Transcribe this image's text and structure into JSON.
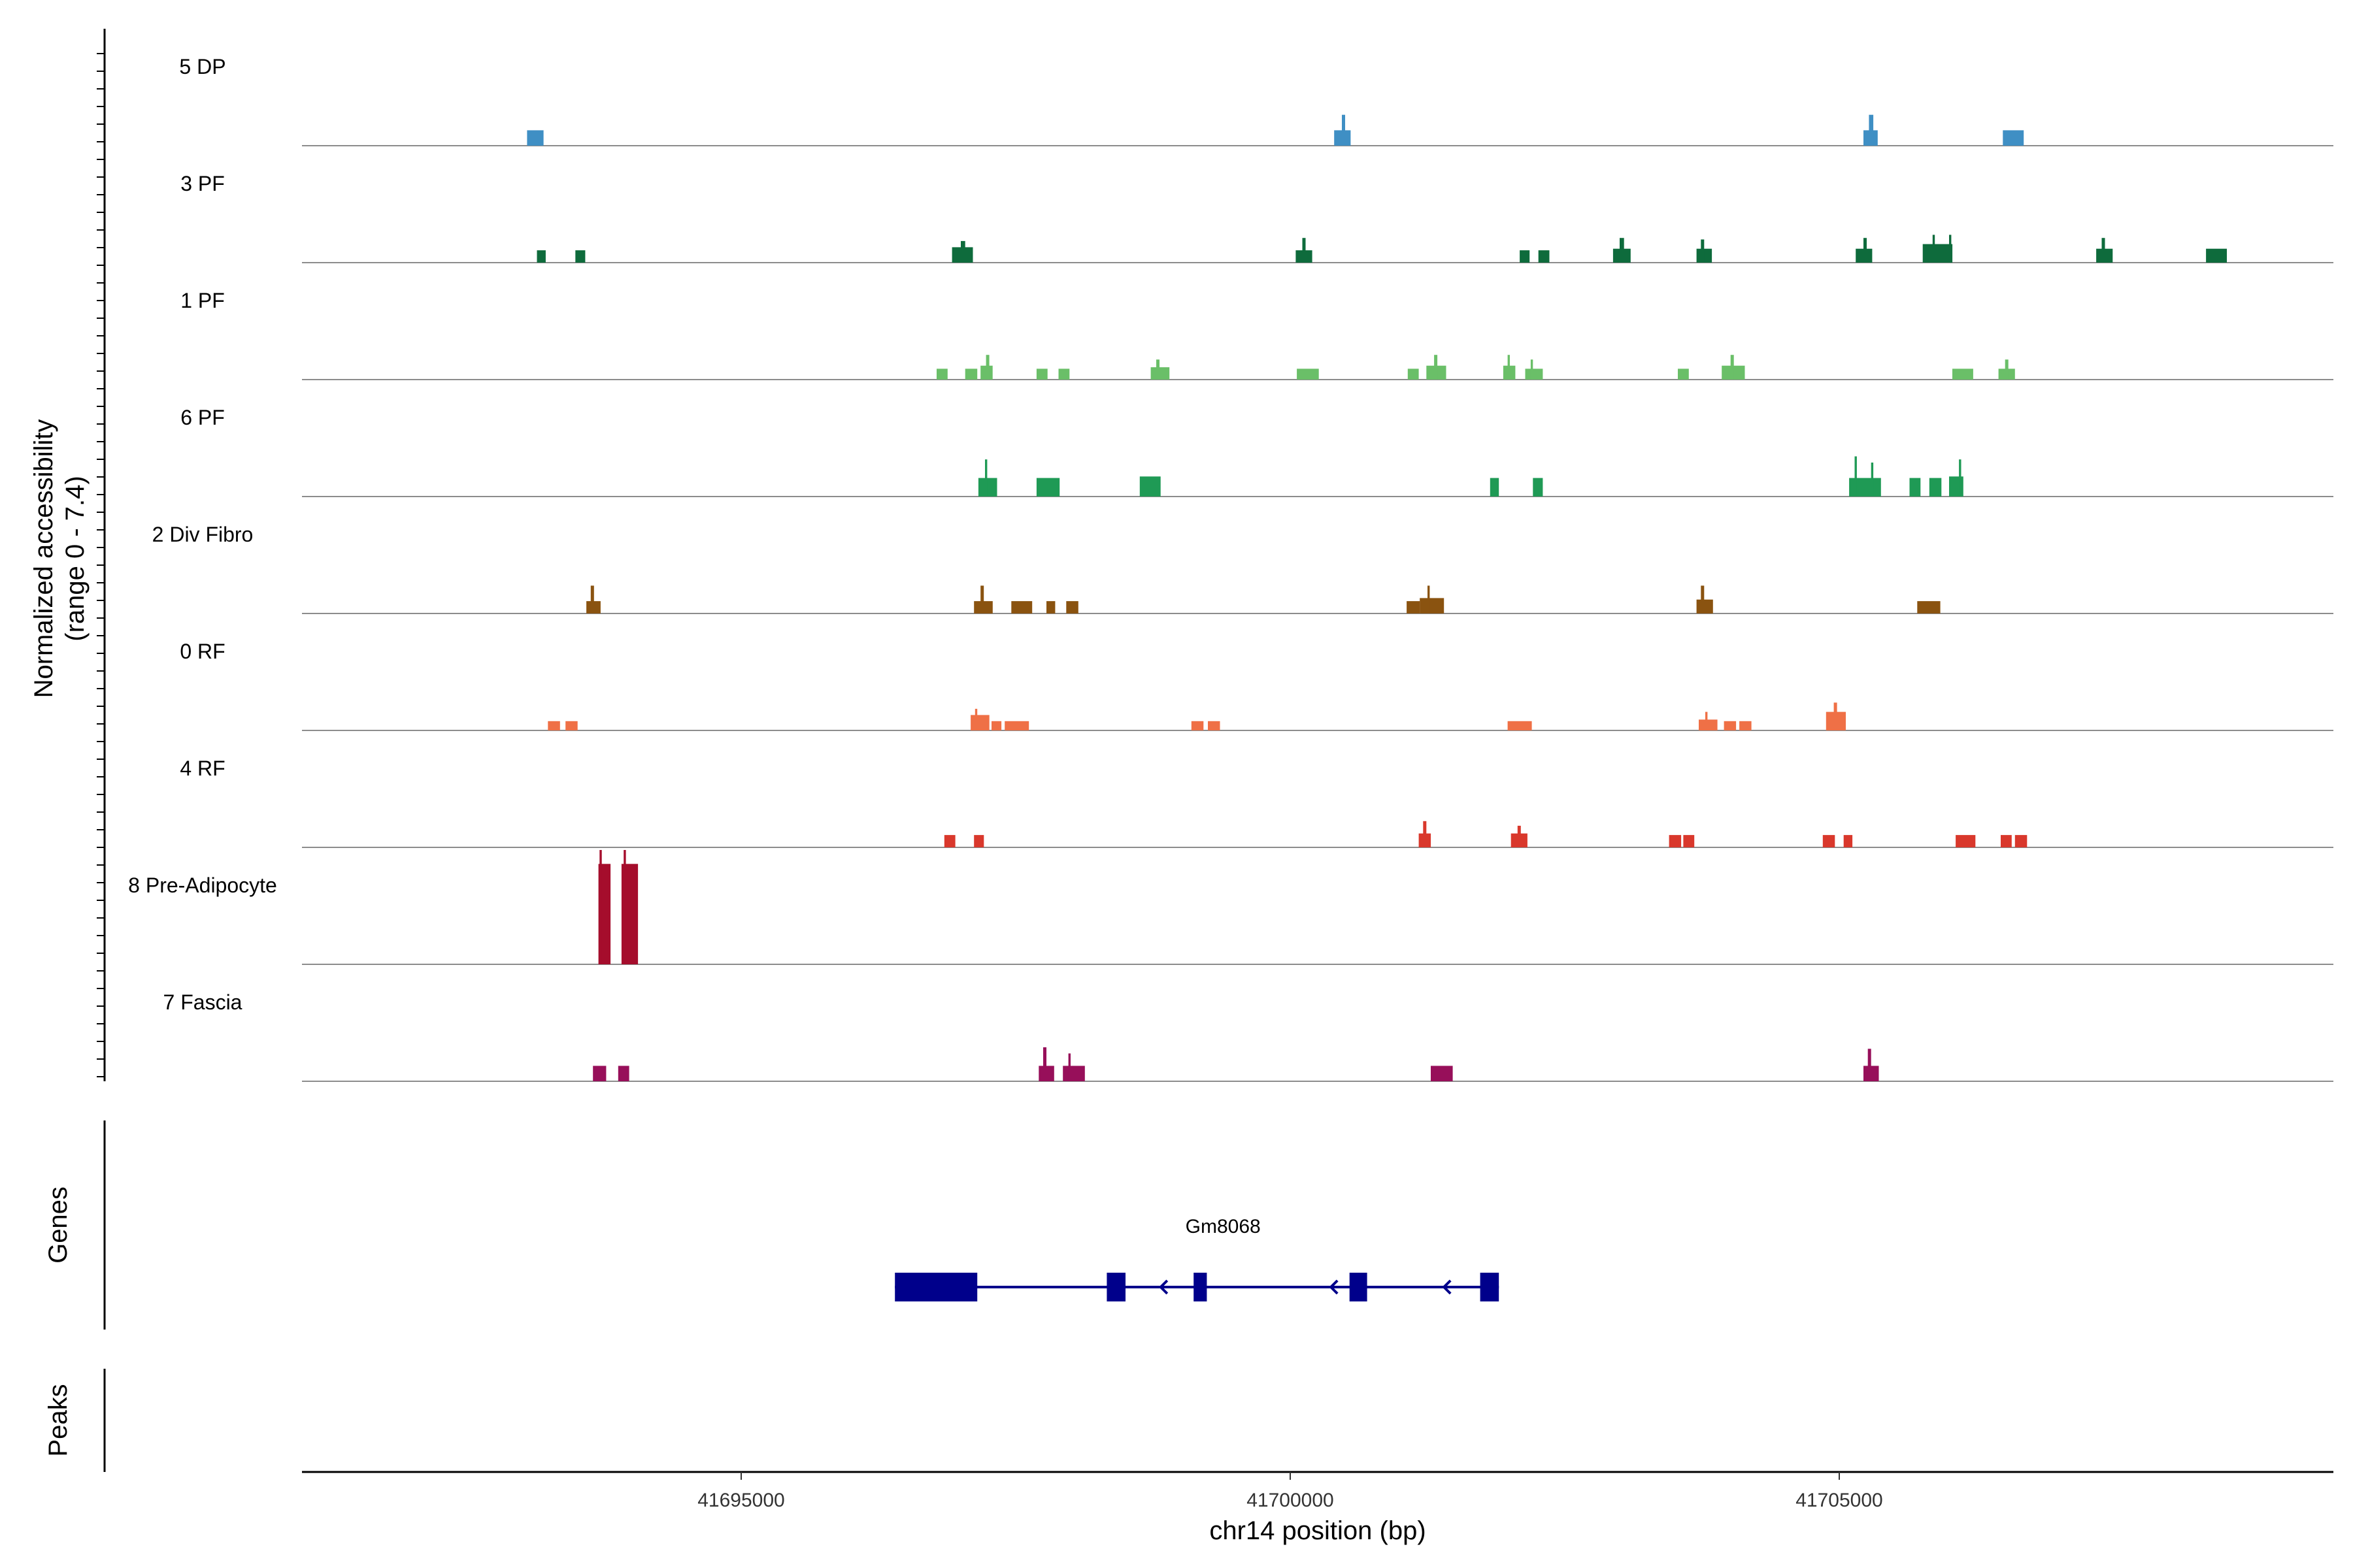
{
  "chart_data": {
    "type": "area",
    "title": "",
    "ylabel_line1": "Normalized accessibility",
    "ylabel_line2": "(range 0 - 7.4)",
    "xlabel": "chr14 position (bp)",
    "xlim": [
      41691000,
      41709500
    ],
    "ylim": [
      0,
      7.4
    ],
    "x_ticks": [
      41695000,
      41700000,
      41705000
    ],
    "x_tick_labels": [
      "41695000",
      "41700000",
      "41705000"
    ],
    "colors": {
      "5 DP": "#3f8fc4",
      "3 PF": "#0e6b3c",
      "1 PF": "#6abf68",
      "6 PF": "#1f9a55",
      "2 Div Fibro": "#8a5310",
      "0 RF": "#ef7046",
      "4 RF": "#d9382c",
      "8 Pre-Adipocyte": "#a50d2c",
      "7 Fascia": "#970f5a",
      "gene": "#00008b"
    },
    "series": [
      {
        "name": "5 DP",
        "peaks": [
          [
            41693050,
            41693200,
            1.0
          ],
          [
            41700400,
            41700550,
            1.0
          ],
          [
            41700470,
            41700500,
            2.0
          ],
          [
            41705220,
            41705350,
            1.0
          ],
          [
            41705270,
            41705310,
            2.0
          ],
          [
            41706490,
            41706680,
            1.0
          ]
        ]
      },
      {
        "name": "3 PF",
        "peaks": [
          [
            41693140,
            41693220,
            0.8
          ],
          [
            41693490,
            41693580,
            0.8
          ],
          [
            41696920,
            41697110,
            1.0
          ],
          [
            41697000,
            41697040,
            1.4
          ],
          [
            41700050,
            41700200,
            0.8
          ],
          [
            41700110,
            41700140,
            1.6
          ],
          [
            41702090,
            41702180,
            0.8
          ],
          [
            41702260,
            41702360,
            0.8
          ],
          [
            41702940,
            41703100,
            0.9
          ],
          [
            41703000,
            41703040,
            1.6
          ],
          [
            41703700,
            41703840,
            0.9
          ],
          [
            41703740,
            41703770,
            1.5
          ],
          [
            41705150,
            41705300,
            0.9
          ],
          [
            41705220,
            41705250,
            1.6
          ],
          [
            41705760,
            41706030,
            1.2
          ],
          [
            41705850,
            41705870,
            1.8
          ],
          [
            41706000,
            41706020,
            1.8
          ],
          [
            41707340,
            41707490,
            0.9
          ],
          [
            41707390,
            41707420,
            1.6
          ],
          [
            41708340,
            41708530,
            0.9
          ]
        ]
      },
      {
        "name": "1 PF",
        "peaks": [
          [
            41696780,
            41696880,
            0.7
          ],
          [
            41697040,
            41697150,
            0.7
          ],
          [
            41697180,
            41697290,
            0.9
          ],
          [
            41697230,
            41697260,
            1.6
          ],
          [
            41697690,
            41697790,
            0.7
          ],
          [
            41697890,
            41697990,
            0.7
          ],
          [
            41698730,
            41698900,
            0.8
          ],
          [
            41698780,
            41698810,
            1.3
          ],
          [
            41700060,
            41700260,
            0.7
          ],
          [
            41701070,
            41701170,
            0.7
          ],
          [
            41701240,
            41701420,
            0.9
          ],
          [
            41701310,
            41701340,
            1.6
          ],
          [
            41701940,
            41702050,
            0.9
          ],
          [
            41701980,
            41702000,
            1.6
          ],
          [
            41702140,
            41702300,
            0.7
          ],
          [
            41702190,
            41702210,
            1.3
          ],
          [
            41703530,
            41703630,
            0.7
          ],
          [
            41703930,
            41704140,
            0.9
          ],
          [
            41704010,
            41704040,
            1.6
          ],
          [
            41706030,
            41706220,
            0.7
          ],
          [
            41706450,
            41706600,
            0.7
          ],
          [
            41706510,
            41706540,
            1.3
          ]
        ]
      },
      {
        "name": "6 PF",
        "peaks": [
          [
            41697160,
            41697330,
            1.2
          ],
          [
            41697220,
            41697240,
            2.4
          ],
          [
            41697690,
            41697900,
            1.2
          ],
          [
            41698630,
            41698820,
            1.3
          ],
          [
            41701820,
            41701900,
            1.2
          ],
          [
            41702210,
            41702300,
            1.2
          ],
          [
            41705090,
            41705380,
            1.2
          ],
          [
            41705140,
            41705160,
            2.6
          ],
          [
            41705290,
            41705310,
            2.2
          ],
          [
            41705640,
            41705740,
            1.2
          ],
          [
            41705820,
            41705930,
            1.2
          ],
          [
            41706000,
            41706130,
            1.3
          ],
          [
            41706090,
            41706110,
            2.4
          ]
        ]
      },
      {
        "name": "2 Div Fibro",
        "peaks": [
          [
            41693590,
            41693720,
            0.8
          ],
          [
            41693630,
            41693660,
            1.8
          ],
          [
            41697120,
            41697290,
            0.8
          ],
          [
            41697180,
            41697210,
            1.8
          ],
          [
            41697460,
            41697650,
            0.8
          ],
          [
            41697780,
            41697860,
            0.8
          ],
          [
            41697960,
            41698070,
            0.8
          ],
          [
            41701060,
            41701180,
            0.8
          ],
          [
            41701180,
            41701400,
            1.0
          ],
          [
            41701250,
            41701270,
            1.8
          ],
          [
            41703700,
            41703850,
            0.9
          ],
          [
            41703740,
            41703770,
            1.8
          ],
          [
            41705710,
            41705920,
            0.8
          ]
        ]
      },
      {
        "name": "0 RF",
        "peaks": [
          [
            41693240,
            41693350,
            0.6
          ],
          [
            41693400,
            41693510,
            0.6
          ],
          [
            41697090,
            41697260,
            1.0
          ],
          [
            41697130,
            41697150,
            1.4
          ],
          [
            41697280,
            41697370,
            0.6
          ],
          [
            41697400,
            41697620,
            0.6
          ],
          [
            41699100,
            41699210,
            0.6
          ],
          [
            41699250,
            41699360,
            0.6
          ],
          [
            41701980,
            41702200,
            0.6
          ],
          [
            41703720,
            41703890,
            0.7
          ],
          [
            41703780,
            41703800,
            1.2
          ],
          [
            41703950,
            41704060,
            0.6
          ],
          [
            41704090,
            41704200,
            0.6
          ],
          [
            41704880,
            41705060,
            1.2
          ],
          [
            41704950,
            41704980,
            1.8
          ]
        ]
      },
      {
        "name": "4 RF",
        "peaks": [
          [
            41696850,
            41696950,
            0.8
          ],
          [
            41697120,
            41697210,
            0.8
          ],
          [
            41701170,
            41701280,
            0.9
          ],
          [
            41701210,
            41701240,
            1.7
          ],
          [
            41702010,
            41702160,
            0.9
          ],
          [
            41702070,
            41702100,
            1.4
          ],
          [
            41703450,
            41703560,
            0.8
          ],
          [
            41703580,
            41703680,
            0.8
          ],
          [
            41704850,
            41704960,
            0.8
          ],
          [
            41705040,
            41705120,
            0.8
          ],
          [
            41706060,
            41706240,
            0.8
          ],
          [
            41706470,
            41706570,
            0.8
          ],
          [
            41706600,
            41706710,
            0.8
          ]
        ]
      },
      {
        "name": "8 Pre-Adipocyte",
        "peaks": [
          [
            41693700,
            41693810,
            6.5
          ],
          [
            41693710,
            41693730,
            7.4
          ],
          [
            41693910,
            41694060,
            6.5
          ],
          [
            41693930,
            41693950,
            7.4
          ]
        ]
      },
      {
        "name": "7 Fascia",
        "peaks": [
          [
            41693650,
            41693770,
            1.0
          ],
          [
            41693880,
            41693980,
            1.0
          ],
          [
            41697710,
            41697850,
            1.0
          ],
          [
            41697750,
            41697780,
            2.2
          ],
          [
            41697930,
            41698130,
            1.0
          ],
          [
            41697980,
            41698000,
            1.8
          ],
          [
            41701280,
            41701480,
            1.0
          ],
          [
            41705220,
            41705360,
            1.0
          ],
          [
            41705260,
            41705290,
            2.1
          ]
        ]
      }
    ],
    "panels": [
      {
        "name": "Genes"
      },
      {
        "name": "Peaks"
      }
    ],
    "gene": {
      "name": "Gm8068",
      "strand": "-",
      "start": 41696400,
      "end": 41701900,
      "exons": [
        [
          41696400,
          41697150
        ],
        [
          41698330,
          41698500
        ],
        [
          41699120,
          41699240
        ],
        [
          41700540,
          41700700
        ],
        [
          41701730,
          41701900
        ]
      ],
      "arrows": [
        41696970,
        41698820,
        41700370,
        41701400
      ]
    }
  }
}
